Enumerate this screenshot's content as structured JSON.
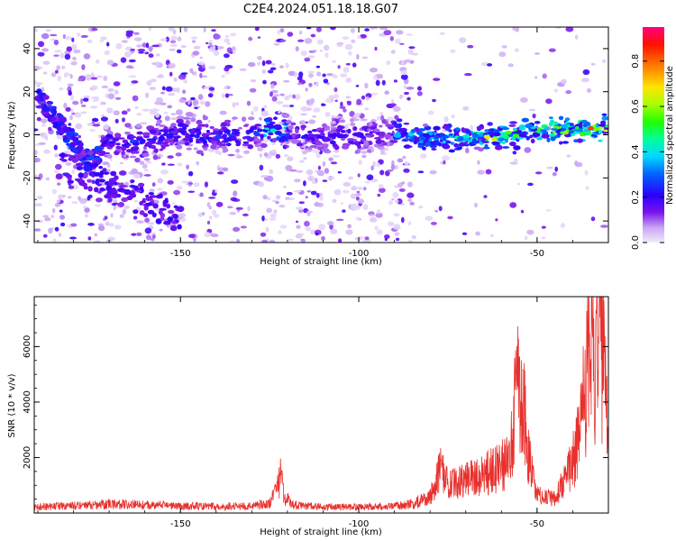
{
  "title": "C2E4.2024.051.18.18.G07",
  "chart_data": [
    {
      "type": "heatmap",
      "name": "spectrogram",
      "xlabel": "Height of straight line (km)",
      "ylabel": "Frequency (Hz)",
      "xlim": [
        -191,
        -30
      ],
      "ylim": [
        -50,
        50
      ],
      "xticks": [
        -150,
        -100,
        -50
      ],
      "yticks": [
        -40,
        -20,
        0,
        20,
        40
      ],
      "colorbar": {
        "label": "Normalized spectral amplitude",
        "range": [
          0,
          0.95
        ],
        "ticks": [
          0.0,
          0.2,
          0.4,
          0.6,
          0.8
        ],
        "tick_labels": [
          "0.0",
          "0.2",
          "0.4",
          "0.6",
          "0.8"
        ]
      },
      "ridges": [
        {
          "name": "descending-branch",
          "points": [
            [
              -190,
              18
            ],
            [
              -185,
              8
            ],
            [
              -180,
              -3
            ],
            [
              -176,
              -12
            ],
            [
              -172,
              -8
            ]
          ]
        },
        {
          "name": "main-ridge",
          "points": [
            [
              -172,
              -4
            ],
            [
              -160,
              -3
            ],
            [
              -150,
              1
            ],
            [
              -140,
              -1
            ],
            [
              -130,
              0
            ],
            [
              -125,
              3
            ],
            [
              -115,
              -1
            ],
            [
              -100,
              -1
            ],
            [
              -90,
              1
            ],
            [
              -80,
              -2
            ],
            [
              -70,
              -1
            ],
            [
              -60,
              -1
            ],
            [
              -50,
              2
            ],
            [
              -40,
              2
            ],
            [
              -30,
              3
            ]
          ]
        }
      ],
      "peak_amplitude_at": [
        -35,
        3
      ]
    },
    {
      "type": "line",
      "name": "snr",
      "xlabel": "Height of straight line (km)",
      "ylabel": "SNR (10 * v/v)",
      "xlim": [
        -191,
        -30
      ],
      "ylim": [
        0,
        7800
      ],
      "xticks": [
        -150,
        -100,
        -50
      ],
      "yticks": [
        2000,
        4000,
        6000
      ],
      "color": "#e8302c",
      "series": [
        {
          "name": "SNR",
          "x": [
            -191,
            -185,
            -180,
            -175,
            -170,
            -165,
            -160,
            -155,
            -150,
            -145,
            -140,
            -135,
            -130,
            -125,
            -123,
            -122,
            -121,
            -118,
            -115,
            -110,
            -105,
            -100,
            -95,
            -90,
            -85,
            -80,
            -77,
            -75,
            -70,
            -65,
            -60,
            -57,
            -56,
            -55,
            -54,
            -53,
            -50,
            -45,
            -42,
            -40,
            -38,
            -36,
            -35,
            -34,
            -33,
            -32,
            -31,
            -30
          ],
          "y": [
            250,
            300,
            320,
            350,
            400,
            380,
            350,
            330,
            300,
            300,
            280,
            300,
            290,
            450,
            900,
            1650,
            700,
            380,
            300,
            280,
            270,
            260,
            280,
            300,
            400,
            700,
            1900,
            1200,
            1400,
            1700,
            2000,
            3000,
            6000,
            5500,
            5800,
            3000,
            800,
            600,
            1500,
            2200,
            3600,
            6200,
            7700,
            5800,
            7400,
            7200,
            6000,
            2200
          ]
        }
      ]
    }
  ]
}
